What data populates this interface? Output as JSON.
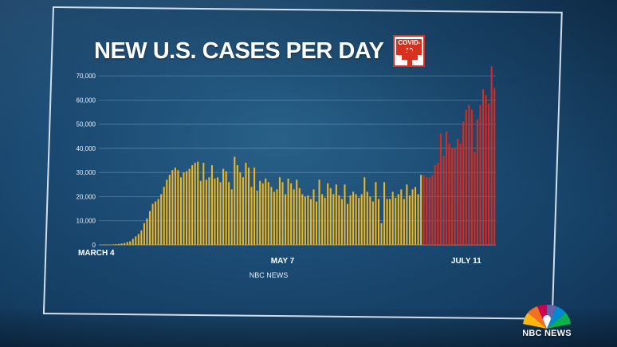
{
  "header": {
    "title": "NEW U.S. CASES PER DAY",
    "badge_text": "COVID-19"
  },
  "footer": {
    "brand": "NBC NEWS"
  },
  "colors": {
    "bar": "#f2b61c",
    "bar_recent": "#e0281c",
    "grid": "#9db8d0",
    "background": "#1d4f78"
  },
  "icons": [
    "cross-icon",
    "nbc-peacock-icon"
  ],
  "chart_data": {
    "type": "bar",
    "title": "NEW U.S. CASES PER DAY",
    "source": "NBC NEWS",
    "ylim": [
      0,
      75000
    ],
    "y_ticks": [
      0,
      10000,
      20000,
      30000,
      40000,
      50000,
      60000,
      70000
    ],
    "y_tick_labels": [
      "0",
      "10,000",
      "20,000",
      "30,000",
      "40,000",
      "50,000",
      "60,000",
      "70,000"
    ],
    "x_labels": [
      {
        "text": "MARCH 4",
        "index": 0
      },
      {
        "text": "MAY 7",
        "index": 64
      },
      {
        "text": "JULY 11",
        "index": 129
      }
    ],
    "grid": true,
    "highlight_from_index": 114,
    "values": [
      50,
      80,
      100,
      150,
      200,
      300,
      400,
      600,
      800,
      1200,
      1500,
      2500,
      3500,
      4500,
      6000,
      9000,
      11000,
      14000,
      17000,
      18000,
      19000,
      21000,
      24000,
      27000,
      29000,
      31000,
      32000,
      31000,
      28000,
      30000,
      30500,
      31500,
      33000,
      34000,
      34500,
      26500,
      34000,
      27000,
      28000,
      33000,
      27500,
      28000,
      26000,
      31500,
      30500,
      26000,
      23000,
      36500,
      33000,
      30000,
      28000,
      34000,
      32000,
      24000,
      32000,
      22500,
      26500,
      25500,
      27500,
      26000,
      24000,
      22000,
      23000,
      28000,
      26000,
      21000,
      27500,
      25500,
      23000,
      27000,
      23500,
      21000,
      20000,
      20500,
      19000,
      23000,
      18000,
      27000,
      21000,
      19500,
      25500,
      23500,
      21000,
      25000,
      20500,
      19000,
      25000,
      17000,
      20500,
      22000,
      21000,
      19500,
      21000,
      28000,
      22000,
      20000,
      18000,
      26000,
      19000,
      9000,
      26000,
      19000,
      19000,
      22000,
      19500,
      21000,
      23000,
      19000,
      25000,
      20500,
      23000,
      24000,
      21000,
      29000,
      29000,
      28000,
      28000,
      29000,
      33000,
      34000,
      46000,
      37000,
      47000,
      42000,
      40000,
      40000,
      44000,
      42000,
      51000,
      56000,
      58000,
      56000,
      38500,
      52000,
      58000,
      64500,
      62000,
      58500,
      74000,
      65000
    ]
  }
}
